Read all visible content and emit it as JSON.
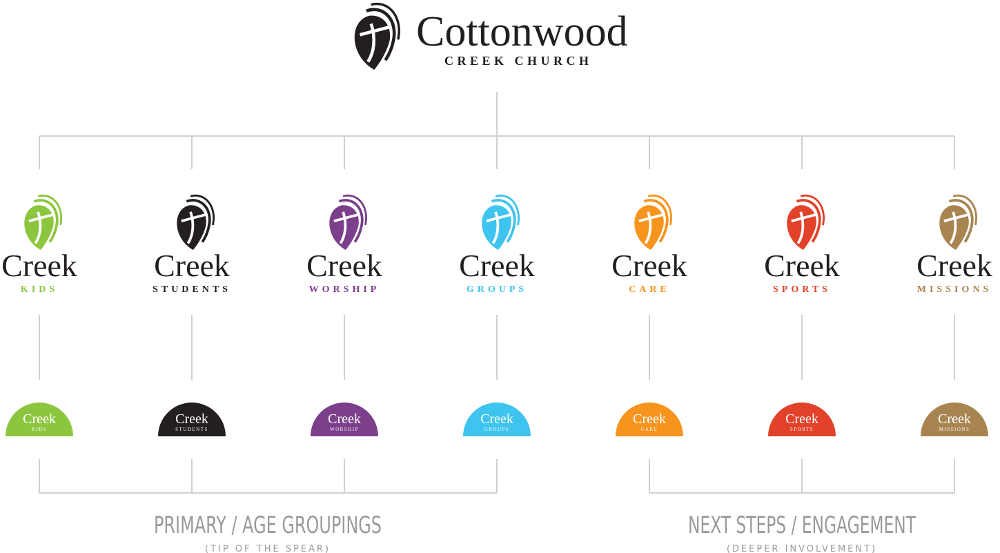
{
  "header": {
    "title": "Cottonwood",
    "subtitle": "CREEK CHURCH",
    "color": "#231f20"
  },
  "nodes": [
    {
      "name": "Creek",
      "label": "KIDS",
      "color": "#8cc63f"
    },
    {
      "name": "Creek",
      "label": "STUDENTS",
      "color": "#231f20"
    },
    {
      "name": "Creek",
      "label": "WORSHIP",
      "color": "#7b3f8c"
    },
    {
      "name": "Creek",
      "label": "GROUPS",
      "color": "#3ec4ee"
    },
    {
      "name": "Creek",
      "label": "CARE",
      "color": "#f7941d"
    },
    {
      "name": "Creek",
      "label": "SPORTS",
      "color": "#e2412a"
    },
    {
      "name": "Creek",
      "label": "MISSIONS",
      "color": "#a88451"
    }
  ],
  "groups": [
    {
      "title": "PRIMARY / AGE GROUPINGS",
      "subtitle": "(TIP OF THE SPEAR)",
      "from": 0,
      "to": 3
    },
    {
      "title": "NEXT STEPS / ENGAGEMENT",
      "subtitle": "(DEEPER INVOLVEMENT)",
      "from": 4,
      "to": 6
    }
  ]
}
